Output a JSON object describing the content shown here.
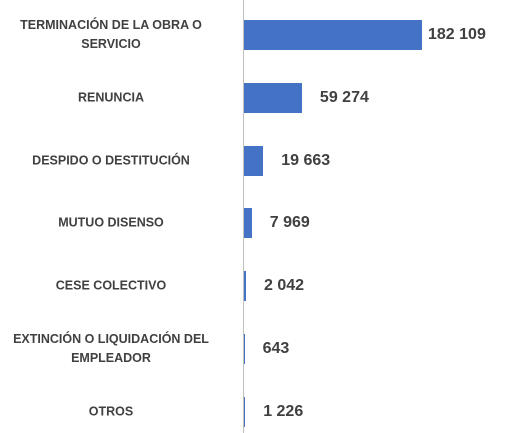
{
  "chart_data": {
    "type": "bar",
    "orientation": "horizontal",
    "color": "#4472c4",
    "categories": [
      "TERMINACIÓN DE LA OBRA O SERVICIO",
      "RENUNCIA",
      "DESPIDO O DESTITUCIÓN",
      "MUTUO DISENSO",
      "CESE COLECTIVO",
      "EXTINCIÓN O LIQUIDACIÓN DEL EMPLEADOR",
      "OTROS"
    ],
    "values": [
      182109,
      59274,
      19663,
      7969,
      2042,
      643,
      1226
    ],
    "value_labels": [
      "182 109",
      "59 274",
      "19 663",
      "7 969",
      "2 042",
      "643",
      "1 226"
    ]
  }
}
